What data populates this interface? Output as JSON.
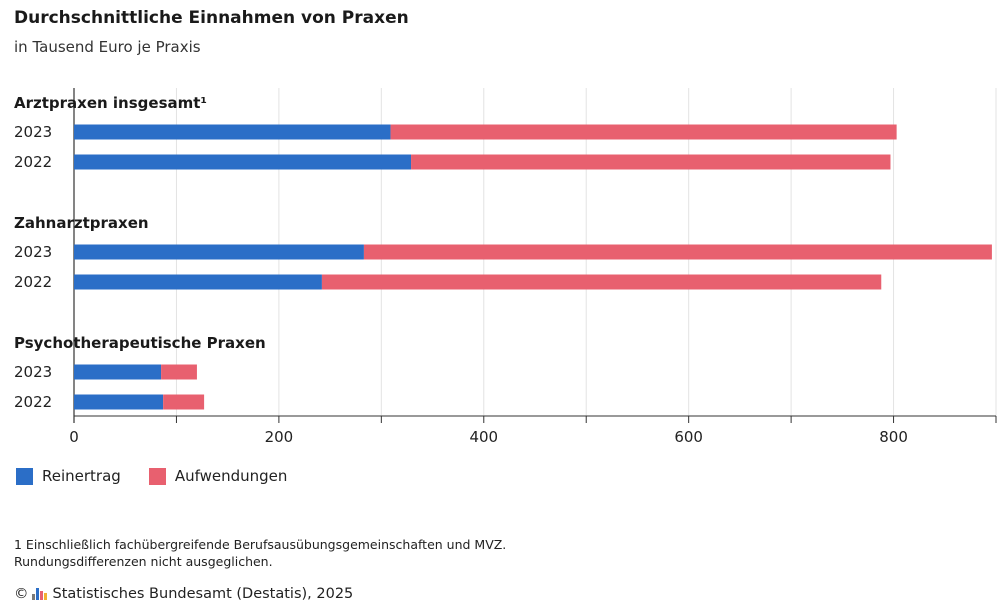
{
  "chart_data": {
    "type": "bar",
    "orientation": "horizontal",
    "stacked": true,
    "title": "Durchschnittliche Einnahmen von Praxen",
    "subtitle": "in Tausend Euro je Praxis",
    "xlim": [
      0,
      900
    ],
    "x_ticks": [
      "0",
      "200",
      "400",
      "600",
      "800"
    ],
    "grid": true,
    "legend_position": "bottom-left",
    "groups": [
      {
        "label": "Arztpraxen insgesamt¹",
        "rows": [
          {
            "label": "2023",
            "values": [
              309,
              494
            ]
          },
          {
            "label": "2022",
            "values": [
              329,
              468
            ]
          }
        ]
      },
      {
        "label": "Zahnarztpraxen",
        "rows": [
          {
            "label": "2023",
            "values": [
              283,
              613
            ]
          },
          {
            "label": "2022",
            "values": [
              242,
              546
            ]
          }
        ]
      },
      {
        "label": "Psychotherapeutische Praxen",
        "rows": [
          {
            "label": "2023",
            "values": [
              85,
              35
            ]
          },
          {
            "label": "2022",
            "values": [
              87,
              40
            ]
          }
        ]
      }
    ],
    "series": [
      {
        "name": "Reinertrag",
        "color": "#2b6ec7"
      },
      {
        "name": "Aufwendungen",
        "color": "#e8606f"
      }
    ]
  },
  "footnote": {
    "line1": "1 Einschließlich fachübergreifende Berufsausübungsgemeinschaften und MVZ.",
    "line2": "Rundungsdifferenzen nicht ausgeglichen."
  },
  "source": {
    "copyright_symbol": "©",
    "text": "Statistisches Bundesamt (Destatis), 2025"
  }
}
